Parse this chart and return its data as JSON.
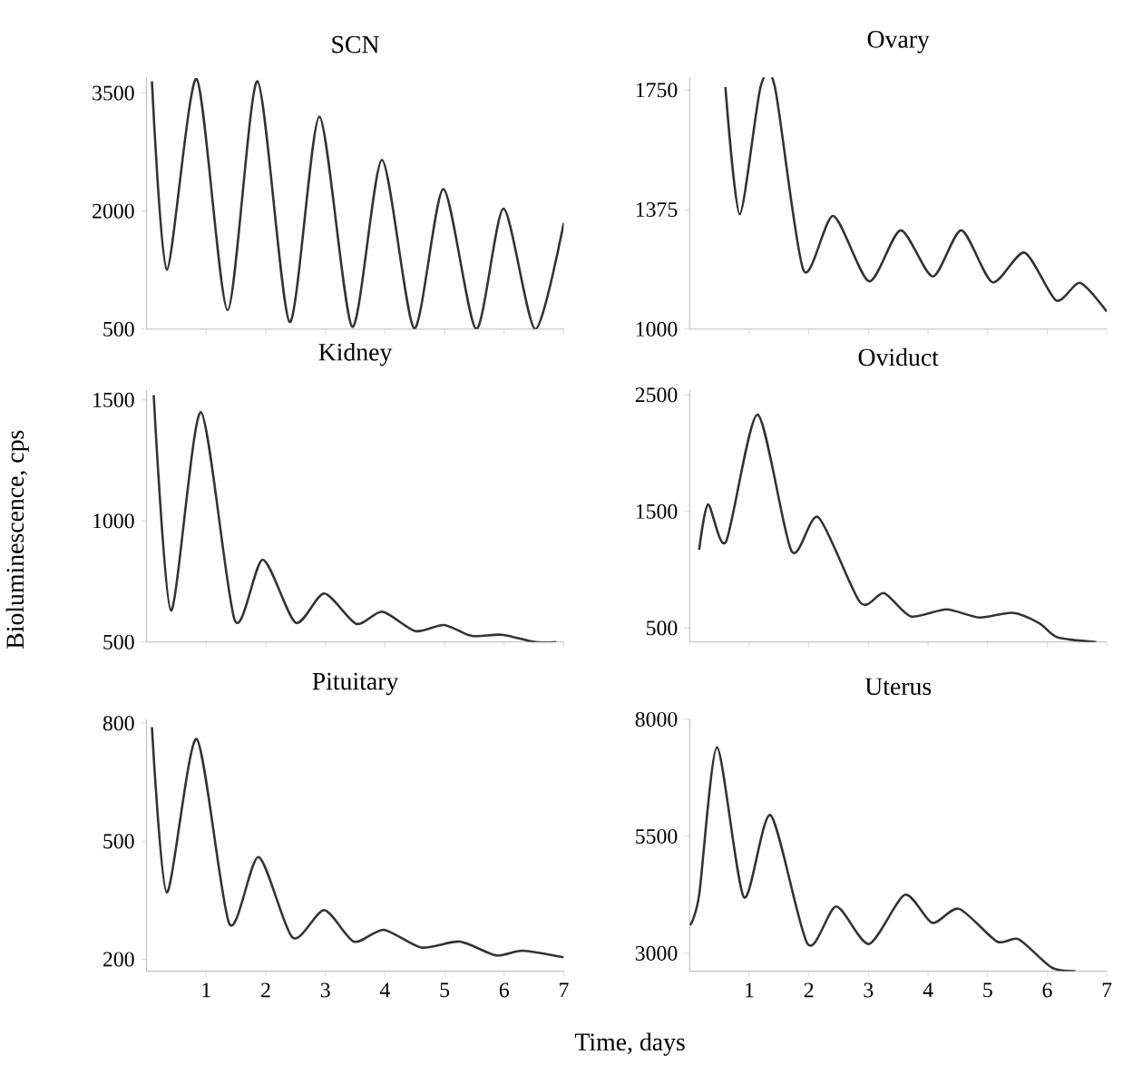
{
  "chart_data": [
    {
      "type": "line",
      "title": "SCN",
      "xlim": [
        0,
        7
      ],
      "xticks": [
        1,
        2,
        3,
        4,
        5,
        6,
        7
      ],
      "ylim": [
        500,
        3700
      ],
      "yticks": [
        500,
        2000,
        3500
      ],
      "tick_labels": "y",
      "color": "#333333",
      "marker": "none",
      "x": [
        0.09,
        0.34,
        0.84,
        1.36,
        1.86,
        2.4,
        2.9,
        3.45,
        3.95,
        4.49,
        4.98,
        5.53,
        5.99,
        6.52,
        7.0
      ],
      "values": [
        3650,
        1250,
        3680,
        740,
        3650,
        590,
        3200,
        530,
        2650,
        510,
        2280,
        500,
        2030,
        500,
        1850
      ]
    },
    {
      "type": "line",
      "title": "Ovary",
      "xlim": [
        0,
        7
      ],
      "xticks": [
        1,
        2,
        3,
        4,
        5,
        6,
        7
      ],
      "ylim": [
        1000,
        1790
      ],
      "yticks": [
        1000,
        1375,
        1750
      ],
      "tick_labels": "y",
      "color": "#333333",
      "marker": "none",
      "x": [
        0.6,
        0.84,
        1.19,
        1.43,
        1.91,
        2.41,
        3.01,
        3.54,
        4.08,
        4.56,
        5.08,
        5.62,
        6.15,
        6.55,
        7.0
      ],
      "values": [
        1760,
        1360,
        1760,
        1760,
        1185,
        1355,
        1150,
        1310,
        1165,
        1310,
        1147,
        1240,
        1090,
        1145,
        1055
      ]
    },
    {
      "type": "line",
      "title": "Kidney",
      "ylabel": "Bioluminescence, cps",
      "xlim": [
        0,
        7
      ],
      "xticks": [
        1,
        2,
        3,
        4,
        5,
        6,
        7
      ],
      "ylim": [
        500,
        1540
      ],
      "yticks": [
        500,
        1000,
        1500
      ],
      "tick_labels": "y",
      "color": "#333333",
      "marker": "none",
      "x": [
        0.12,
        0.41,
        0.91,
        1.48,
        1.95,
        2.5,
        2.98,
        3.52,
        3.96,
        4.51,
        4.99,
        5.46,
        5.96,
        6.52,
        6.87
      ],
      "values": [
        1520,
        630,
        1450,
        590,
        840,
        580,
        700,
        575,
        625,
        545,
        570,
        525,
        530,
        500,
        500
      ]
    },
    {
      "type": "line",
      "title": "Oviduct",
      "xlim": [
        0,
        7
      ],
      "xticks": [
        1,
        2,
        3,
        4,
        5,
        6,
        7
      ],
      "ylim": [
        380,
        2540
      ],
      "yticks": [
        500,
        1500,
        2500
      ],
      "tick_labels": "y",
      "color": "#333333",
      "marker": "none",
      "x": [
        0.16,
        0.31,
        0.61,
        1.14,
        1.71,
        2.16,
        2.86,
        3.26,
        3.71,
        4.31,
        4.86,
        5.42,
        5.87,
        6.17,
        6.82
      ],
      "values": [
        1170,
        1560,
        1240,
        2330,
        1160,
        1450,
        720,
        800,
        600,
        660,
        590,
        630,
        540,
        420,
        380
      ]
    },
    {
      "type": "line",
      "title": "Pituitary",
      "xlabel": "Time, days",
      "xlim": [
        0,
        7
      ],
      "xticks": [
        1,
        2,
        3,
        4,
        5,
        6,
        7
      ],
      "ylim": [
        170,
        810
      ],
      "yticks": [
        200,
        500,
        800
      ],
      "color": "#333333",
      "marker": "none",
      "x": [
        0.09,
        0.34,
        0.84,
        1.39,
        1.88,
        2.45,
        2.98,
        3.48,
        3.98,
        4.61,
        5.26,
        5.86,
        6.31,
        7.0
      ],
      "values": [
        790,
        370,
        760,
        290,
        460,
        255,
        325,
        245,
        275,
        230,
        245,
        210,
        222,
        205
      ]
    },
    {
      "type": "line",
      "title": "Uterus",
      "xlim": [
        0,
        7
      ],
      "xticks": [
        1,
        2,
        3,
        4,
        5,
        6,
        7
      ],
      "ylim": [
        2620,
        8000
      ],
      "yticks": [
        3000,
        5500,
        8000
      ],
      "color": "#333333",
      "marker": "none",
      "x": [
        0.01,
        0.16,
        0.46,
        0.91,
        1.36,
        1.98,
        2.46,
        3.01,
        3.61,
        4.07,
        4.52,
        5.16,
        5.52,
        6.07,
        6.47
      ],
      "values": [
        3600,
        4250,
        7400,
        4200,
        5950,
        3200,
        4000,
        3200,
        4250,
        3650,
        3950,
        3250,
        3300,
        2700,
        2620
      ]
    }
  ]
}
